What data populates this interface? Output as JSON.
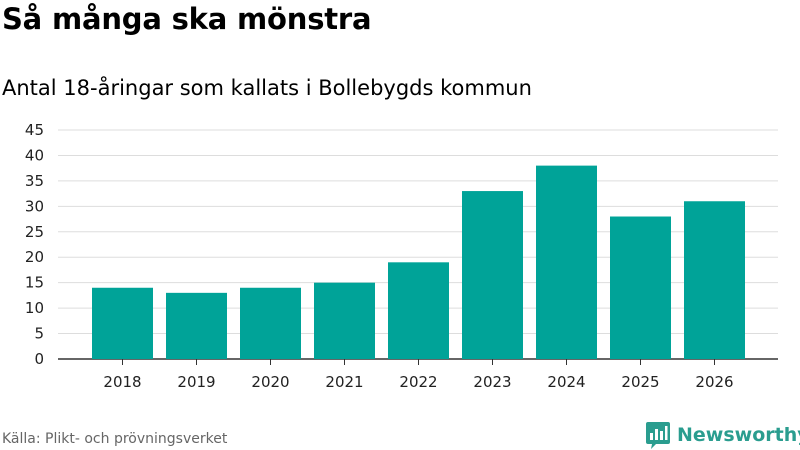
{
  "header": {
    "title": "Så många ska mönstra",
    "subtitle": "Antal 18-åringar som kallats i Bollebygds kommun"
  },
  "footer": {
    "source": "Källa: Plikt- och prövningsverket",
    "brand": "Newsworthy"
  },
  "colors": {
    "bar": "#00a398",
    "brand": "#2a9d8f"
  },
  "chart_data": {
    "type": "bar",
    "title": "Så många ska mönstra",
    "subtitle": "Antal 18-åringar som kallats i Bollebygds kommun",
    "xlabel": "",
    "ylabel": "",
    "categories": [
      "2018",
      "2019",
      "2020",
      "2021",
      "2022",
      "2023",
      "2024",
      "2025",
      "2026"
    ],
    "values": [
      14,
      13,
      14,
      15,
      19,
      33,
      38,
      28,
      31
    ],
    "ylim": [
      0,
      45
    ],
    "yticks": [
      0,
      5,
      10,
      15,
      20,
      25,
      30,
      35,
      40,
      45
    ],
    "grid": true,
    "legend": "none"
  }
}
